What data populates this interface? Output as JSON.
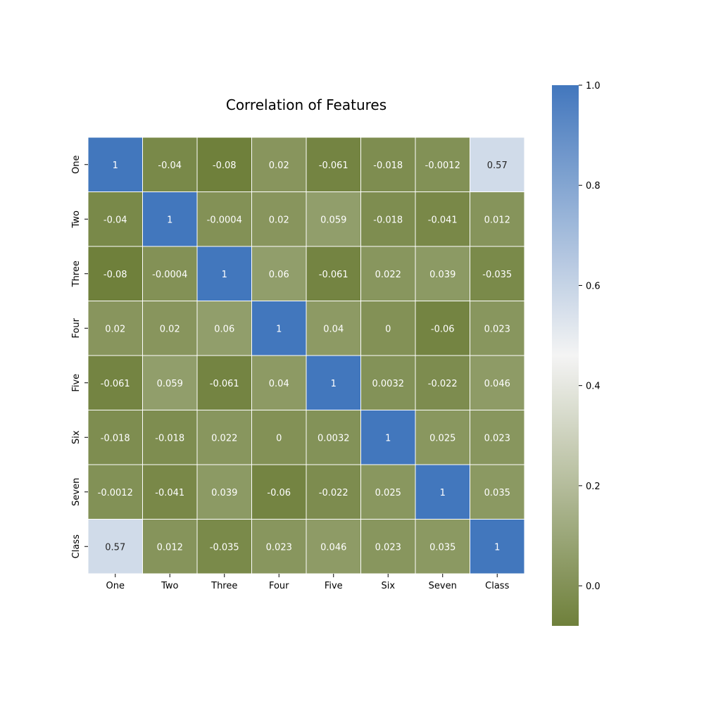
{
  "chart_data": {
    "type": "heatmap",
    "title": "Correlation of Features",
    "x_categories": [
      "One",
      "Two",
      "Three",
      "Four",
      "Five",
      "Six",
      "Seven",
      "Class"
    ],
    "y_categories": [
      "One",
      "Two",
      "Three",
      "Four",
      "Five",
      "Six",
      "Seven",
      "Class"
    ],
    "values": [
      [
        1,
        -0.04,
        -0.08,
        0.02,
        -0.061,
        -0.018,
        -0.0012,
        0.57
      ],
      [
        -0.04,
        1,
        -0.0004,
        0.02,
        0.059,
        -0.018,
        -0.041,
        0.012
      ],
      [
        -0.08,
        -0.0004,
        1,
        0.06,
        -0.061,
        0.022,
        0.039,
        -0.035
      ],
      [
        0.02,
        0.02,
        0.06,
        1,
        0.04,
        0,
        -0.06,
        0.023
      ],
      [
        -0.061,
        0.059,
        -0.061,
        0.04,
        1,
        0.0032,
        -0.022,
        0.046
      ],
      [
        -0.018,
        -0.018,
        0.022,
        0,
        0.0032,
        1,
        0.025,
        0.023
      ],
      [
        -0.0012,
        -0.041,
        0.039,
        -0.06,
        -0.022,
        0.025,
        1,
        0.035
      ],
      [
        0.57,
        0.012,
        -0.035,
        0.023,
        0.046,
        0.023,
        0.035,
        1
      ]
    ],
    "annotations": [
      [
        "1",
        "-0.04",
        "-0.08",
        "0.02",
        "-0.061",
        "-0.018",
        "-0.0012",
        "0.57"
      ],
      [
        "-0.04",
        "1",
        "-0.0004",
        "0.02",
        "0.059",
        "-0.018",
        "-0.041",
        "0.012"
      ],
      [
        "-0.08",
        "-0.0004",
        "1",
        "0.06",
        "-0.061",
        "0.022",
        "0.039",
        "-0.035"
      ],
      [
        "0.02",
        "0.02",
        "0.06",
        "1",
        "0.04",
        "0",
        "-0.06",
        "0.023"
      ],
      [
        "-0.061",
        "0.059",
        "-0.061",
        "0.04",
        "1",
        "0.0032",
        "-0.022",
        "0.046"
      ],
      [
        "-0.018",
        "-0.018",
        "0.022",
        "0",
        "0.0032",
        "1",
        "0.025",
        "0.023"
      ],
      [
        "-0.0012",
        "-0.041",
        "0.039",
        "-0.06",
        "-0.022",
        "0.025",
        "1",
        "0.035"
      ],
      [
        "0.57",
        "0.012",
        "-0.035",
        "0.023",
        "0.046",
        "0.023",
        "0.035",
        "1"
      ]
    ],
    "colorbar": {
      "vmin": -0.08,
      "vmax": 1.0,
      "ticks": [
        0.0,
        0.2,
        0.4,
        0.6,
        0.8,
        1.0
      ],
      "tick_labels": [
        "0.0",
        "0.2",
        "0.4",
        "0.6",
        "0.8",
        "1.0"
      ]
    },
    "colormap": [
      "#6f803b",
      "#f4f4f4",
      "#4277bd"
    ],
    "grid_line_color": "#ffffff",
    "annotation_color_light": "#ffffff",
    "annotation_color_dark": "#262626"
  }
}
